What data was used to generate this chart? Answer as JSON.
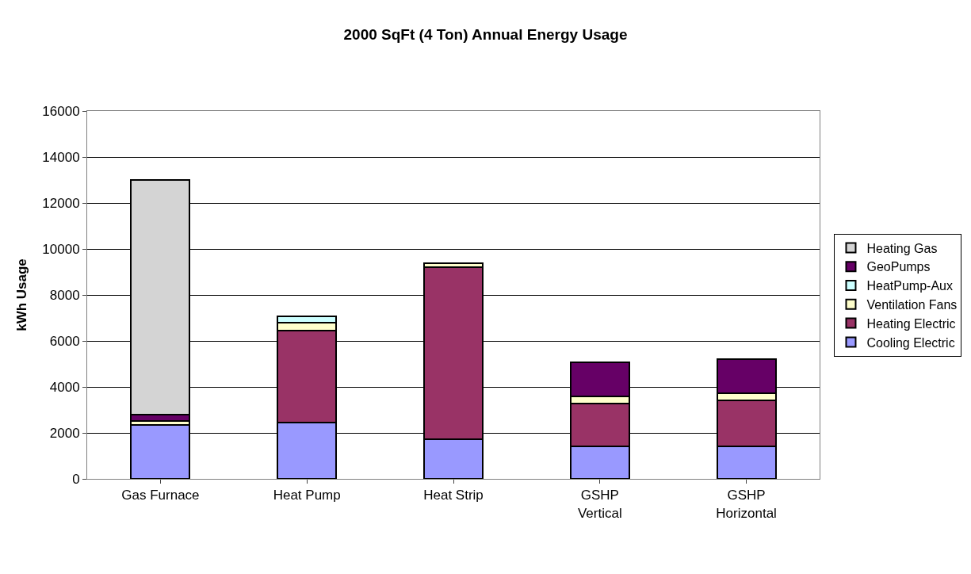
{
  "chart_data": {
    "type": "bar",
    "title": "2000 SqFt (4 Ton) Annual Energy Usage",
    "ylabel": "kWh Usage",
    "categories": [
      "Gas Furnace",
      "Heat Pump",
      "Heat Strip",
      "GSHP\nVertical",
      "GSHP\nHorizontal"
    ],
    "stacked": true,
    "series": [
      {
        "name": "Cooling Electric",
        "color": "#9999ff",
        "values": [
          2350,
          2440,
          1740,
          1420,
          1420
        ]
      },
      {
        "name": "Heating Electric",
        "color": "#993366",
        "values": [
          null,
          4020,
          7480,
          1840,
          1980
        ]
      },
      {
        "name": "Ventilation Fans",
        "color": "#ffffcc",
        "values": [
          160,
          320,
          150,
          340,
          320
        ]
      },
      {
        "name": "HeatPump-Aux",
        "color": "#ccffff",
        "values": [
          null,
          290,
          null,
          null,
          null
        ]
      },
      {
        "name": "GeoPumps",
        "color": "#660066",
        "values": [
          290,
          null,
          null,
          1460,
          1470
        ]
      },
      {
        "name": "Heating Gas",
        "color": "#d4d4d4",
        "values": [
          10200,
          null,
          null,
          null,
          null
        ]
      }
    ],
    "ylim": [
      0,
      16000
    ],
    "yticks": [
      0,
      2000,
      4000,
      6000,
      8000,
      10000,
      12000,
      14000,
      16000
    ],
    "grid": "y",
    "legend": "right"
  }
}
